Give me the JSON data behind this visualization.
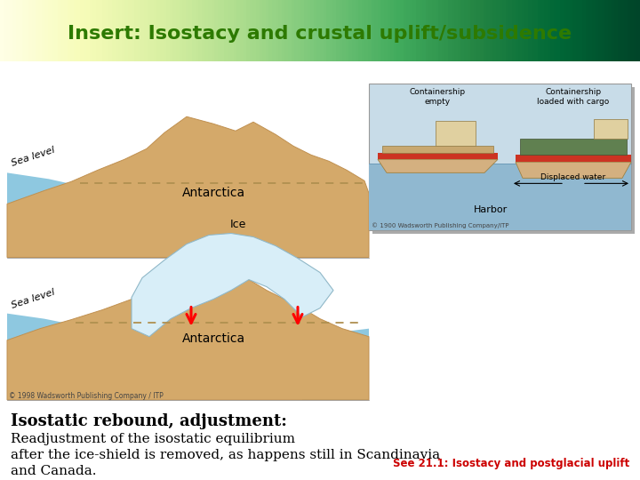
{
  "title": "Insert: Isostacy and crustal uplift/subsidence",
  "title_color": "#2d7a00",
  "title_bg": "#b8e8b0",
  "bold_text": "Isostatic rebound, adjustment:",
  "body_line1": "Readjustment of the isostatic equilibrium",
  "body_line2": "after the ice-shield is removed, as happens still in Scandinavia",
  "body_line3": "and Canada.",
  "see_text": "See 21.1: Isostacy and postglacial uplift",
  "see_text_color": "#cc0000",
  "bg_color": "#ffffff",
  "land_color": "#d4a96a",
  "land_edge": "#c09050",
  "sea_color": "#8ec8e0",
  "sea_color2": "#a8d8e8",
  "ice_color": "#d8eef8",
  "ice_edge": "#90b8c8",
  "dashed_color": "#b09050",
  "ship_bg": "#c8dce8",
  "ship_bg2": "#b0ccd8",
  "harbor_water": "#90b8d0",
  "copyright_color": "#444444"
}
